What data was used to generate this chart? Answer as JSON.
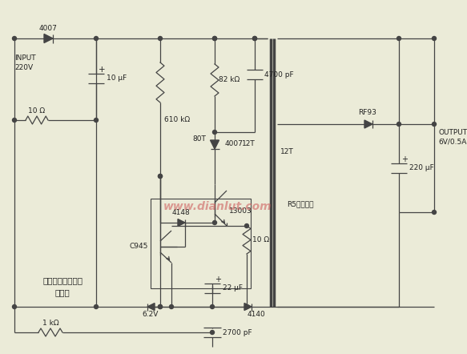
{
  "bg_color": "#ebebd8",
  "line_color": "#444444",
  "text_color": "#222222",
  "wm_color": "#cc5555",
  "lw": 0.9,
  "labels": {
    "4007_top": "4007",
    "input1": "INPUT",
    "input2": "220V",
    "10ohm": "10 Ω",
    "10uF": "10 μF",
    "82kohm": "82 kΩ",
    "4700pF": "4700 pF",
    "610kohm": "610 kΩ",
    "80T": "80T",
    "4007_mid": "4007",
    "12T_left": "12T",
    "12T_right": "12T",
    "RF93": "RF93",
    "220uF": "220 μF",
    "out1": "OUTPUT",
    "out2": "6V/0.5A",
    "13003": "13003",
    "4148": "4148",
    "C945": "C945",
    "10ohm_bot": "10 Ω",
    "R5": "R5高频磁芯",
    "6_2V": "6.2V",
    "22uF": "22 μF",
    "4140": "4140",
    "2700pF": "2700 pF",
    "1kohm": "1 kΩ",
    "title1": "手机充电器用电源",
    "title2": "卓换器",
    "wm": "www.dianlut.com"
  }
}
